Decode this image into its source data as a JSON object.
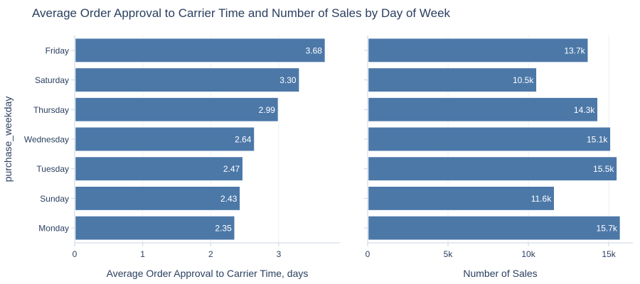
{
  "title": "Average Order Approval to Carrier Time and Number of Sales by Day of Week",
  "colors": {
    "bar": "#4c78a8",
    "grid": "#ebf0f8",
    "axis_line": "#c8d4e3",
    "text": "#2a3f5f",
    "bar_label": "#ffffff"
  },
  "chart_data": [
    {
      "type": "bar",
      "orientation": "horizontal",
      "categories": [
        "Friday",
        "Saturday",
        "Thursday",
        "Wednesday",
        "Tuesday",
        "Sunday",
        "Monday"
      ],
      "values": [
        3.68,
        3.3,
        2.99,
        2.64,
        2.47,
        2.43,
        2.35
      ],
      "value_labels": [
        "3.68",
        "3.30",
        "2.99",
        "2.64",
        "2.47",
        "2.43",
        "2.35"
      ],
      "xlabel": "Average Order Approval to Carrier Time, days",
      "ylabel": "purchase_weekday",
      "xlim": [
        0,
        3.9
      ],
      "xticks": [
        0,
        1,
        2,
        3
      ],
      "xtick_labels": [
        "0",
        "1",
        "2",
        "3"
      ],
      "grid": true
    },
    {
      "type": "bar",
      "orientation": "horizontal",
      "categories": [
        "Friday",
        "Saturday",
        "Thursday",
        "Wednesday",
        "Tuesday",
        "Sunday",
        "Monday"
      ],
      "values": [
        13700,
        10500,
        14300,
        15100,
        15500,
        11600,
        15700
      ],
      "value_labels": [
        "13.7k",
        "10.5k",
        "14.3k",
        "15.1k",
        "15.5k",
        "11.6k",
        "15.7k"
      ],
      "xlabel": "Number of Sales",
      "ylabel": "",
      "xlim": [
        0,
        16500
      ],
      "xticks": [
        0,
        5000,
        10000,
        15000
      ],
      "xtick_labels": [
        "0",
        "5k",
        "10k",
        "15k"
      ],
      "grid": true
    }
  ]
}
